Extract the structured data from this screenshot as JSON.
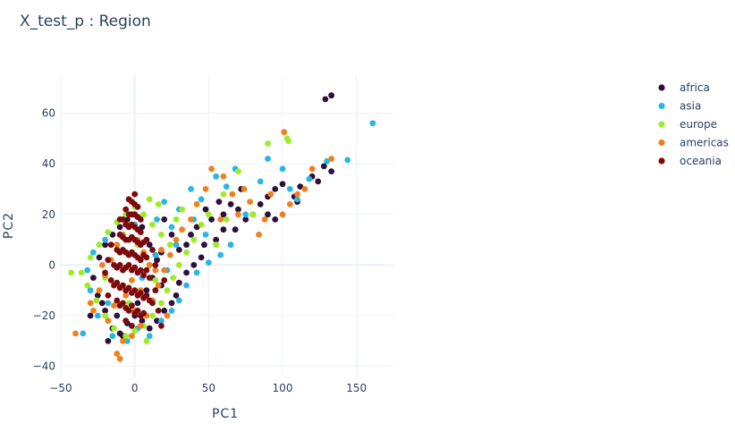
{
  "chart_data": {
    "type": "scatter",
    "title": "X_test_p : Region",
    "xlabel": "PC1",
    "ylabel": "PC2",
    "xlim": [
      -50,
      175
    ],
    "ylim": [
      -44,
      75
    ],
    "xticks": [
      -50,
      0,
      50,
      100,
      150
    ],
    "yticks": [
      -40,
      -20,
      0,
      20,
      40,
      60
    ],
    "grid": true,
    "legend_position": "top-right",
    "series": [
      {
        "name": "africa",
        "color": "#2d0f3a",
        "points": [
          [
            129,
            65.5
          ],
          [
            133,
            67
          ],
          [
            128,
            39
          ],
          [
            133,
            37
          ],
          [
            124,
            33
          ],
          [
            112,
            31
          ],
          [
            108,
            27
          ],
          [
            100,
            32
          ],
          [
            95,
            30
          ],
          [
            90,
            27
          ],
          [
            85,
            24
          ],
          [
            80,
            20
          ],
          [
            75,
            18
          ],
          [
            70,
            22
          ],
          [
            65,
            24
          ],
          [
            60,
            20
          ],
          [
            57,
            25
          ],
          [
            52,
            18
          ],
          [
            48,
            22
          ],
          [
            42,
            15
          ],
          [
            38,
            12
          ],
          [
            35,
            8
          ],
          [
            30,
            6
          ],
          [
            25,
            12
          ],
          [
            20,
            18
          ],
          [
            18,
            5
          ],
          [
            60,
            14
          ],
          [
            55,
            10
          ],
          [
            47,
            8
          ],
          [
            45,
            3
          ],
          [
            40,
            0
          ],
          [
            35,
            -3
          ],
          [
            30,
            -7
          ],
          [
            28,
            -12
          ],
          [
            25,
            -15
          ],
          [
            20,
            -18
          ],
          [
            15,
            -22
          ],
          [
            10,
            -25
          ],
          [
            5,
            -22
          ],
          [
            0,
            -20
          ],
          [
            -5,
            -23
          ],
          [
            -10,
            -27
          ],
          [
            -15,
            -25
          ],
          [
            -20,
            -18
          ],
          [
            -25,
            -12
          ],
          [
            -28,
            -5
          ],
          [
            -24,
            3
          ],
          [
            -20,
            8
          ],
          [
            -15,
            12
          ],
          [
            -10,
            15
          ],
          [
            -5,
            18
          ],
          [
            0,
            20
          ],
          [
            5,
            15
          ],
          [
            10,
            8
          ],
          [
            15,
            2
          ],
          [
            -30,
            -20
          ],
          [
            -18,
            -30
          ],
          [
            -8,
            -28
          ],
          [
            2,
            -15
          ],
          [
            8,
            -10
          ],
          [
            12,
            -5
          ],
          [
            18,
            -8
          ],
          [
            -12,
            -20
          ],
          [
            -22,
            -15
          ],
          [
            90,
            20
          ],
          [
            110,
            25
          ],
          [
            120,
            35
          ],
          [
            95,
            18
          ],
          [
            72,
            30
          ],
          [
            68,
            14
          ]
        ]
      },
      {
        "name": "asia",
        "color": "#29b6e5",
        "points": [
          [
            161,
            56
          ],
          [
            144,
            41.5
          ],
          [
            130,
            41
          ],
          [
            118,
            34
          ],
          [
            110,
            26
          ],
          [
            100,
            38
          ],
          [
            90,
            42
          ],
          [
            85,
            33
          ],
          [
            68,
            38
          ],
          [
            62,
            31
          ],
          [
            55,
            35
          ],
          [
            45,
            26
          ],
          [
            38,
            30
          ],
          [
            30,
            22
          ],
          [
            25,
            15
          ],
          [
            20,
            25
          ],
          [
            15,
            18
          ],
          [
            65,
            8
          ],
          [
            58,
            4
          ],
          [
            50,
            1
          ],
          [
            42,
            -3
          ],
          [
            35,
            -8
          ],
          [
            30,
            -14
          ],
          [
            25,
            -18
          ],
          [
            18,
            -22
          ],
          [
            10,
            -28
          ],
          [
            -5,
            -30
          ],
          [
            -15,
            -28
          ],
          [
            -25,
            -20
          ],
          [
            -30,
            -10
          ],
          [
            -32,
            -2
          ],
          [
            -28,
            5
          ],
          [
            -20,
            10
          ],
          [
            -10,
            12
          ],
          [
            0,
            16
          ],
          [
            8,
            10
          ],
          [
            14,
            4
          ],
          [
            22,
            -2
          ],
          [
            5,
            -5
          ],
          [
            -8,
            -8
          ],
          [
            -18,
            -15
          ],
          [
            2,
            -25
          ],
          [
            48,
            12
          ],
          [
            40,
            18
          ],
          [
            28,
            8
          ],
          [
            -35,
            -27
          ],
          [
            75,
            20
          ],
          [
            105,
            30
          ]
        ]
      },
      {
        "name": "europe",
        "color": "#9ded26",
        "points": [
          [
            90,
            48
          ],
          [
            103,
            50
          ],
          [
            104,
            49
          ],
          [
            70,
            37
          ],
          [
            60,
            28
          ],
          [
            50,
            20
          ],
          [
            45,
            16
          ],
          [
            40,
            10
          ],
          [
            35,
            5
          ],
          [
            30,
            0
          ],
          [
            26,
            -5
          ],
          [
            22,
            -10
          ],
          [
            18,
            -15
          ],
          [
            12,
            -20
          ],
          [
            6,
            -24
          ],
          [
            0,
            -26
          ],
          [
            -6,
            -28
          ],
          [
            -14,
            -25
          ],
          [
            -20,
            -20
          ],
          [
            -26,
            -14
          ],
          [
            -32,
            -8
          ],
          [
            -36,
            -3
          ],
          [
            -30,
            3
          ],
          [
            -24,
            8
          ],
          [
            -18,
            13
          ],
          [
            -12,
            17
          ],
          [
            -6,
            20
          ],
          [
            0,
            23
          ],
          [
            6,
            20
          ],
          [
            12,
            16
          ],
          [
            18,
            12
          ],
          [
            24,
            8
          ],
          [
            28,
            18
          ],
          [
            32,
            22
          ],
          [
            10,
            26
          ],
          [
            16,
            24
          ],
          [
            -43,
            -3
          ],
          [
            55,
            8
          ],
          [
            62,
            18
          ],
          [
            80,
            20
          ],
          [
            5,
            -12
          ],
          [
            -4,
            -15
          ],
          [
            10,
            0
          ],
          [
            -10,
            5
          ],
          [
            2,
            8
          ],
          [
            14,
            -6
          ],
          [
            -20,
            -5
          ],
          [
            8,
            -30
          ]
        ]
      },
      {
        "name": "americas",
        "color": "#f0801e",
        "points": [
          [
            101,
            52.5
          ],
          [
            133,
            42
          ],
          [
            120,
            38
          ],
          [
            115,
            30
          ],
          [
            105,
            24
          ],
          [
            100,
            20
          ],
          [
            92,
            28
          ],
          [
            88,
            18
          ],
          [
            78,
            25
          ],
          [
            74,
            30
          ],
          [
            66,
            28
          ],
          [
            60,
            35
          ],
          [
            52,
            38
          ],
          [
            48,
            30
          ],
          [
            42,
            24
          ],
          [
            38,
            18
          ],
          [
            32,
            14
          ],
          [
            28,
            10
          ],
          [
            24,
            4
          ],
          [
            20,
            -2
          ],
          [
            16,
            -8
          ],
          [
            12,
            -14
          ],
          [
            8,
            -20
          ],
          [
            4,
            -24
          ],
          [
            -2,
            -28
          ],
          [
            -8,
            -30
          ],
          [
            -12,
            -35
          ],
          [
            -10,
            -37
          ],
          [
            -40,
            -27
          ],
          [
            -28,
            -18
          ],
          [
            -24,
            -10
          ],
          [
            -20,
            -4
          ],
          [
            -16,
            2
          ],
          [
            -12,
            8
          ],
          [
            -8,
            12
          ],
          [
            -4,
            16
          ],
          [
            2,
            10
          ],
          [
            6,
            5
          ],
          [
            10,
            0
          ],
          [
            -2,
            -6
          ],
          [
            -6,
            -12
          ],
          [
            -14,
            -16
          ],
          [
            -18,
            -22
          ],
          [
            0,
            -18
          ],
          [
            4,
            -10
          ],
          [
            14,
            -2
          ],
          [
            18,
            6
          ],
          [
            -22,
            0
          ],
          [
            58,
            18
          ],
          [
            70,
            20
          ],
          [
            84,
            12
          ],
          [
            110,
            28
          ],
          [
            -30,
            -15
          ],
          [
            22,
            -20
          ]
        ]
      },
      {
        "name": "oceania",
        "color": "#7d0a0a",
        "points": [
          [
            -4,
            26
          ],
          [
            -2,
            25
          ],
          [
            0,
            24
          ],
          [
            2,
            23
          ],
          [
            -6,
            22
          ],
          [
            -4,
            20
          ],
          [
            -2,
            20
          ],
          [
            0,
            20
          ],
          [
            2,
            19
          ],
          [
            4,
            18
          ],
          [
            -8,
            18
          ],
          [
            -6,
            16
          ],
          [
            -4,
            15
          ],
          [
            -2,
            16
          ],
          [
            0,
            15
          ],
          [
            2,
            14
          ],
          [
            4,
            13
          ],
          [
            -10,
            12
          ],
          [
            -8,
            11
          ],
          [
            -6,
            10
          ],
          [
            -4,
            10
          ],
          [
            -2,
            11
          ],
          [
            0,
            10
          ],
          [
            2,
            9
          ],
          [
            4,
            8
          ],
          [
            6,
            9
          ],
          [
            -12,
            6
          ],
          [
            -10,
            5
          ],
          [
            -8,
            6
          ],
          [
            -6,
            5
          ],
          [
            -4,
            4
          ],
          [
            -2,
            5
          ],
          [
            0,
            4
          ],
          [
            2,
            3
          ],
          [
            4,
            2
          ],
          [
            6,
            4
          ],
          [
            8,
            3
          ],
          [
            -14,
            0
          ],
          [
            -12,
            -1
          ],
          [
            -10,
            0
          ],
          [
            -8,
            -2
          ],
          [
            -6,
            -1
          ],
          [
            -4,
            0
          ],
          [
            -2,
            -2
          ],
          [
            0,
            -1
          ],
          [
            2,
            -3
          ],
          [
            4,
            -2
          ],
          [
            6,
            -4
          ],
          [
            8,
            -2
          ],
          [
            10,
            -5
          ],
          [
            -16,
            -6
          ],
          [
            -14,
            -8
          ],
          [
            -12,
            -7
          ],
          [
            -10,
            -9
          ],
          [
            -8,
            -8
          ],
          [
            -6,
            -10
          ],
          [
            -4,
            -9
          ],
          [
            -2,
            -11
          ],
          [
            0,
            -10
          ],
          [
            2,
            -12
          ],
          [
            4,
            -11
          ],
          [
            6,
            -13
          ],
          [
            8,
            -12
          ],
          [
            10,
            -14
          ],
          [
            12,
            -15
          ],
          [
            -12,
            -14
          ],
          [
            -10,
            -16
          ],
          [
            -8,
            -15
          ],
          [
            -6,
            -17
          ],
          [
            -4,
            -18
          ],
          [
            -2,
            -16
          ],
          [
            0,
            -19
          ],
          [
            2,
            -18
          ],
          [
            4,
            -20
          ],
          [
            6,
            -19
          ],
          [
            -16,
            8
          ],
          [
            -18,
            2
          ],
          [
            -20,
            -3
          ],
          [
            14,
            -10
          ],
          [
            16,
            -18
          ],
          [
            18,
            -24
          ],
          [
            -2,
            -24
          ],
          [
            -6,
            -22
          ],
          [
            12,
            6
          ],
          [
            14,
            0
          ],
          [
            -18,
            -12
          ],
          [
            8,
            10
          ],
          [
            -10,
            18
          ],
          [
            0,
            28
          ],
          [
            20,
            -6
          ]
        ]
      }
    ]
  }
}
